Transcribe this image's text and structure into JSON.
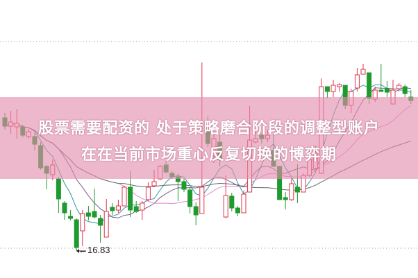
{
  "title": {
    "line1": "股票需要配资的 处于策略磨合阶段的调整型账户",
    "line2": "在在当前市场重心反复切换的博弈期"
  },
  "colors": {
    "up": "#e0304a",
    "down": "#1f9a2e",
    "banner": "#e48cac",
    "ma": [
      "#2a9a9a",
      "#7a5a8a",
      "#e08ad0",
      "#666666"
    ]
  },
  "chart_data": {
    "type": "candlestick",
    "ylim": [
      16.05,
      24.07
    ],
    "grid": "dotted horizontal",
    "annotations": [
      {
        "label": "←16.83",
        "value": 16.83
      }
    ],
    "moving_averages": [
      5,
      10,
      20,
      40
    ],
    "ohlc": [
      [
        20.67,
        20.81,
        20.33,
        20.43
      ],
      [
        20.43,
        20.87,
        20.21,
        20.55
      ],
      [
        20.41,
        20.93,
        20.07,
        20.51
      ],
      [
        20.41,
        20.47,
        20.11,
        20.17
      ],
      [
        20.13,
        20.35,
        20.07,
        20.27
      ],
      [
        20.13,
        20.23,
        19.73,
        19.91
      ],
      [
        19.87,
        19.97,
        19.17,
        19.23
      ],
      [
        19.27,
        19.31,
        18.61,
        19.07
      ],
      [
        19.03,
        19.47,
        18.87,
        19.31
      ],
      [
        18.91,
        18.97,
        17.93,
        18.33
      ],
      [
        18.21,
        18.27,
        17.73,
        17.93
      ],
      [
        17.83,
        18.01,
        17.71,
        17.77
      ],
      [
        17.73,
        17.77,
        16.83,
        16.93
      ],
      [
        17.41,
        18.01,
        16.97,
        17.91
      ],
      [
        17.93,
        18.13,
        17.71,
        17.83
      ],
      [
        17.97,
        18.63,
        17.77,
        17.81
      ],
      [
        17.77,
        17.87,
        17.07,
        17.57
      ],
      [
        17.23,
        18.33,
        17.23,
        17.97
      ],
      [
        18.09,
        18.21,
        17.87,
        17.99
      ],
      [
        18.01,
        18.31,
        17.93,
        18.13
      ],
      [
        18.13,
        18.71,
        18.13,
        18.67
      ],
      [
        18.67,
        19.13,
        17.81,
        18.01
      ],
      [
        18.11,
        18.27,
        17.93,
        17.97
      ],
      [
        18.01,
        18.27,
        17.73,
        18.21
      ],
      [
        18.31,
        18.81,
        18.27,
        18.67
      ],
      [
        18.71,
        19.17,
        18.67,
        18.83
      ],
      [
        18.91,
        19.31,
        18.87,
        19.27
      ],
      [
        19.31,
        19.41,
        19.07,
        19.11
      ],
      [
        19.07,
        19.13,
        18.91,
        18.97
      ],
      [
        18.97,
        19.07,
        18.27,
        18.83
      ],
      [
        18.83,
        18.91,
        18.53,
        18.61
      ],
      [
        18.59,
        18.67,
        17.91,
        18.11
      ],
      [
        18.11,
        18.23,
        17.57,
        17.87
      ],
      [
        17.91,
        22.27,
        17.91,
        18.67
      ],
      [
        20.41,
        20.73,
        19.83,
        19.93
      ],
      [
        19.57,
        20.27,
        19.37,
        20.07
      ],
      [
        19.97,
        20.17,
        19.27,
        19.47
      ],
      [
        17.81,
        19.01,
        17.77,
        18.43
      ],
      [
        18.41,
        18.51,
        17.97,
        18.07
      ],
      [
        18.07,
        18.13,
        17.83,
        17.93
      ],
      [
        17.93,
        18.57,
        17.93,
        18.47
      ],
      [
        18.53,
        21.01,
        18.53,
        20.03
      ],
      [
        19.97,
        20.27,
        19.93,
        20.07
      ],
      [
        20.17,
        20.23,
        19.93,
        20.07
      ],
      [
        20.07,
        20.33,
        19.97,
        20.17
      ],
      [
        19.73,
        20.21,
        19.27,
        19.27
      ],
      [
        19.27,
        19.27,
        18.31,
        18.31
      ],
      [
        18.37,
        18.53,
        18.03,
        18.31
      ],
      [
        18.31,
        18.93,
        18.27,
        18.77
      ],
      [
        18.67,
        19.33,
        18.21,
        18.53
      ],
      [
        18.53,
        19.07,
        18.53,
        19.01
      ],
      [
        19.01,
        19.73,
        18.97,
        19.47
      ],
      [
        19.21,
        19.87,
        19.17,
        19.67
      ],
      [
        19.07,
        21.81,
        19.07,
        21.57
      ],
      [
        21.57,
        21.57,
        21.23,
        21.43
      ],
      [
        21.43,
        21.77,
        21.27,
        21.61
      ],
      [
        21.57,
        21.67,
        21.43,
        21.63
      ],
      [
        21.61,
        21.61,
        20.93,
        21.03
      ],
      [
        21.03,
        21.51,
        20.81,
        21.43
      ],
      [
        21.53,
        22.11,
        21.43,
        21.91
      ],
      [
        21.93,
        22.23,
        21.93,
        22.07
      ],
      [
        21.97,
        21.97,
        21.07,
        21.23
      ],
      [
        21.21,
        21.57,
        21.13,
        21.47
      ],
      [
        21.47,
        22.23,
        21.43,
        21.43
      ],
      [
        21.51,
        21.73,
        21.27,
        21.41
      ],
      [
        21.07,
        21.77,
        21.07,
        21.47
      ],
      [
        21.51,
        21.67,
        21.43,
        21.61
      ],
      [
        21.57,
        21.63,
        21.27,
        21.37
      ],
      [
        21.27,
        21.47,
        21.07,
        21.17
      ]
    ]
  }
}
